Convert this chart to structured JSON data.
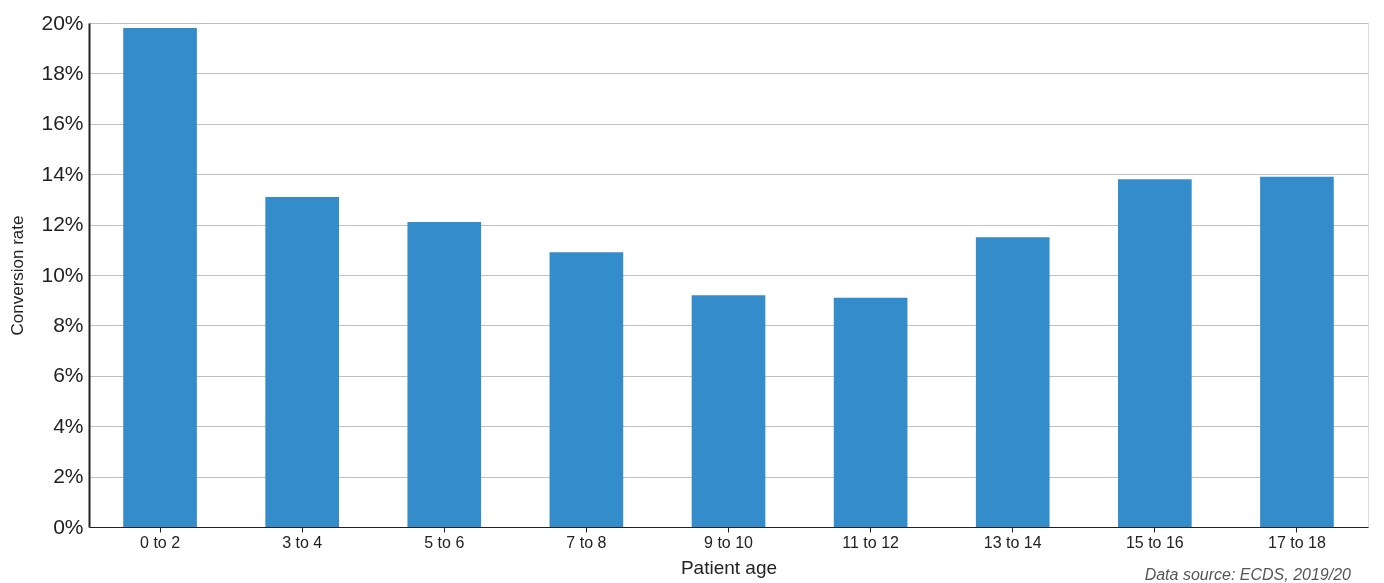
{
  "chart_data": {
    "type": "bar",
    "xlabel": "Patient age",
    "ylabel": "Conversion rate",
    "categories": [
      "0 to 2",
      "3 to 4",
      "5 to 6",
      "7 to 8",
      "9 to 10",
      "11 to 12",
      "13 to 14",
      "15 to 16",
      "17 to 18"
    ],
    "values": [
      19.8,
      13.1,
      12.1,
      10.9,
      9.2,
      9.1,
      11.5,
      13.8,
      13.9
    ],
    "color": "#348dca",
    "ylim": [
      0,
      20
    ],
    "yticks": [
      {
        "value": 0,
        "label": "0%"
      },
      {
        "value": 2,
        "label": "2%"
      },
      {
        "value": 4,
        "label": "4%"
      },
      {
        "value": 6,
        "label": "6%"
      },
      {
        "value": 8,
        "label": "8%"
      },
      {
        "value": 10,
        "label": "10%"
      },
      {
        "value": 12,
        "label": "12%"
      },
      {
        "value": 14,
        "label": "14%"
      },
      {
        "value": 16,
        "label": "16%"
      },
      {
        "value": 18,
        "label": "18%"
      },
      {
        "value": 20,
        "label": "20%"
      }
    ],
    "grid": "y",
    "annotations": [
      "Data source: ECDS, 2019/20"
    ]
  }
}
